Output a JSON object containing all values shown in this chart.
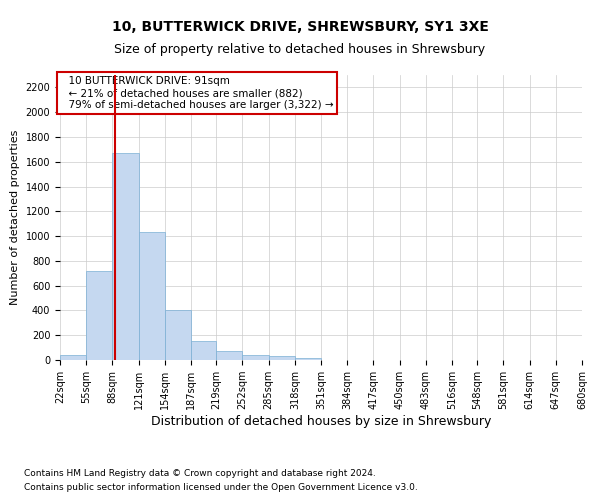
{
  "title": "10, BUTTERWICK DRIVE, SHREWSBURY, SY1 3XE",
  "subtitle": "Size of property relative to detached houses in Shrewsbury",
  "xlabel": "Distribution of detached houses by size in Shrewsbury",
  "ylabel": "Number of detached properties",
  "footnote1": "Contains HM Land Registry data © Crown copyright and database right 2024.",
  "footnote2": "Contains public sector information licensed under the Open Government Licence v3.0.",
  "annotation_title": "10 BUTTERWICK DRIVE: 91sqm",
  "annotation_line1": "← 21% of detached houses are smaller (882)",
  "annotation_line2": "79% of semi-detached houses are larger (3,322) →",
  "property_size": 91,
  "bin_edges": [
    22,
    55,
    88,
    121,
    154,
    187,
    219,
    252,
    285,
    318,
    351,
    384,
    417,
    450,
    483,
    516,
    548,
    581,
    614,
    647,
    680
  ],
  "bar_values": [
    40,
    720,
    1670,
    1030,
    400,
    150,
    70,
    40,
    30,
    20,
    0,
    0,
    0,
    0,
    0,
    0,
    0,
    0,
    0,
    0
  ],
  "bar_color": "#c5d8f0",
  "bar_edge_color": "#7bafd4",
  "vline_color": "#cc0000",
  "vline_x": 91,
  "annotation_box_color": "#cc0000",
  "grid_color": "#cccccc",
  "ylim": [
    0,
    2300
  ],
  "yticks": [
    0,
    200,
    400,
    600,
    800,
    1000,
    1200,
    1400,
    1600,
    1800,
    2000,
    2200
  ],
  "background_color": "#ffffff",
  "title_fontsize": 10,
  "subtitle_fontsize": 9,
  "xlabel_fontsize": 9,
  "ylabel_fontsize": 8,
  "tick_fontsize": 7,
  "annotation_fontsize": 7.5,
  "footnote_fontsize": 6.5
}
